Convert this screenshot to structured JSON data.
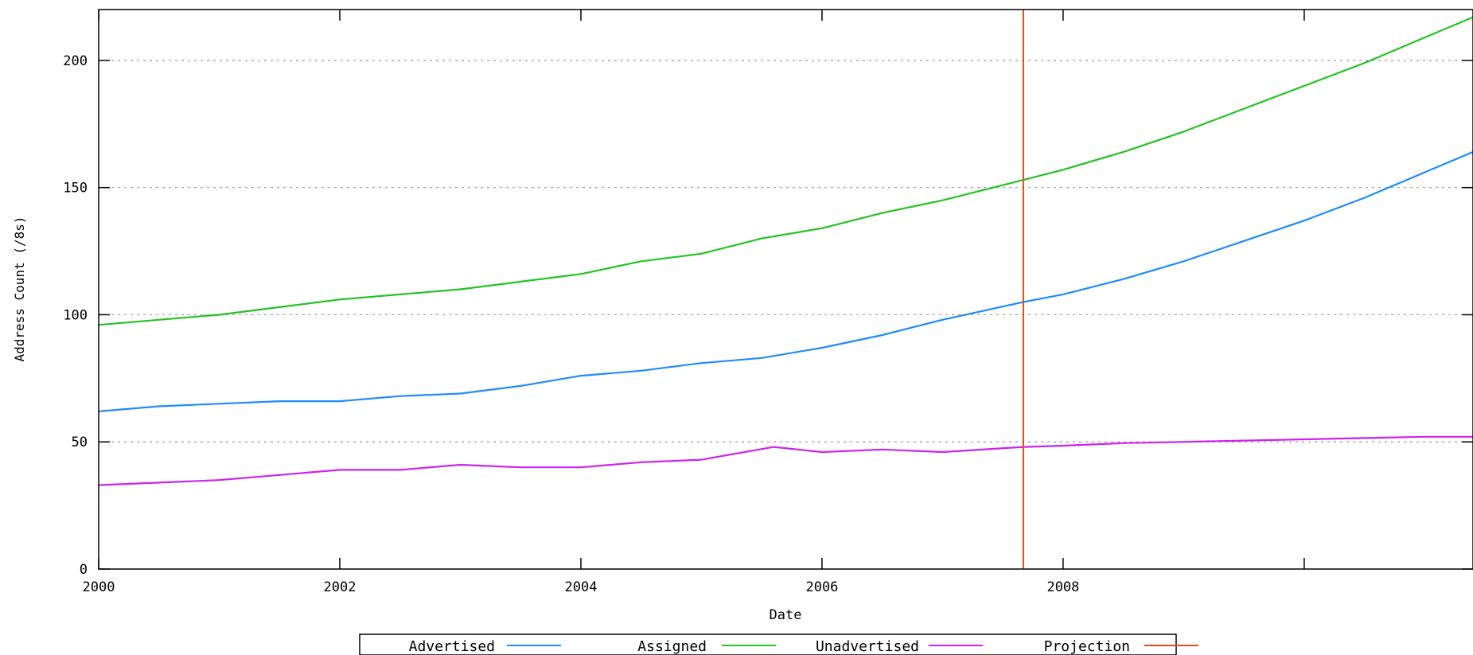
{
  "chart_data": {
    "type": "line",
    "xlabel": "Date",
    "ylabel": "Address Count (/8s)",
    "xlim": [
      2000,
      2011.4
    ],
    "ylim": [
      0,
      220
    ],
    "x_ticks": [
      2000,
      2002,
      2004,
      2006,
      2008,
      2010
    ],
    "x_tick_labels": [
      "2000",
      "2002",
      "2004",
      "2006",
      "2008",
      ""
    ],
    "y_ticks": [
      0,
      50,
      100,
      150,
      200
    ],
    "y_tick_labels": [
      "0",
      "50",
      "100",
      "150",
      "200"
    ],
    "grid": "horizontal dotted",
    "legend_position": "bottom",
    "series": [
      {
        "name": "Advertised",
        "color": "#1e8bff",
        "x": [
          2000,
          2000.5,
          2001,
          2001.5,
          2002,
          2002.5,
          2003,
          2003.5,
          2004,
          2004.5,
          2005,
          2005.5,
          2006,
          2006.5,
          2007,
          2007.67,
          2008,
          2008.5,
          2009,
          2009.5,
          2010,
          2010.5,
          2011,
          2011.4
        ],
        "y": [
          62,
          64,
          65,
          66,
          66,
          68,
          69,
          72,
          76,
          78,
          81,
          83,
          87,
          92,
          98,
          105,
          108,
          114,
          121,
          129,
          137,
          146,
          156,
          164
        ]
      },
      {
        "name": "Assigned",
        "color": "#22c322",
        "x": [
          2000,
          2000.5,
          2001,
          2001.5,
          2002,
          2002.5,
          2003,
          2003.5,
          2004,
          2004.5,
          2005,
          2005.5,
          2006,
          2006.5,
          2007,
          2007.67,
          2008,
          2008.5,
          2009,
          2009.5,
          2010,
          2010.5,
          2011,
          2011.4
        ],
        "y": [
          96,
          98,
          100,
          103,
          106,
          108,
          110,
          113,
          116,
          121,
          124,
          130,
          134,
          140,
          145,
          153,
          157,
          164,
          172,
          181,
          190,
          199,
          209,
          217
        ]
      },
      {
        "name": "Unadvertised",
        "color": "#cc22ee",
        "x": [
          2000,
          2000.5,
          2001,
          2001.5,
          2002,
          2002.5,
          2003,
          2003.5,
          2004,
          2004.5,
          2005,
          2005.6,
          2006,
          2006.5,
          2007,
          2007.67,
          2008,
          2008.5,
          2009,
          2009.5,
          2010,
          2010.5,
          2011,
          2011.4
        ],
        "y": [
          33,
          34,
          35,
          37,
          39,
          39,
          41,
          40,
          40,
          42,
          43,
          48,
          46,
          47,
          46,
          48,
          48.5,
          49.5,
          50,
          50.5,
          51,
          51.5,
          52,
          52
        ]
      }
    ],
    "vertical_markers": [
      {
        "name": "Projection",
        "x": 2007.67,
        "color": "#d9501b"
      }
    ],
    "legend": [
      {
        "label": "Advertised",
        "color": "#1e8bff"
      },
      {
        "label": "Assigned",
        "color": "#22c322"
      },
      {
        "label": "Unadvertised",
        "color": "#cc22ee"
      },
      {
        "label": "Projection",
        "color": "#d9501b"
      }
    ]
  }
}
